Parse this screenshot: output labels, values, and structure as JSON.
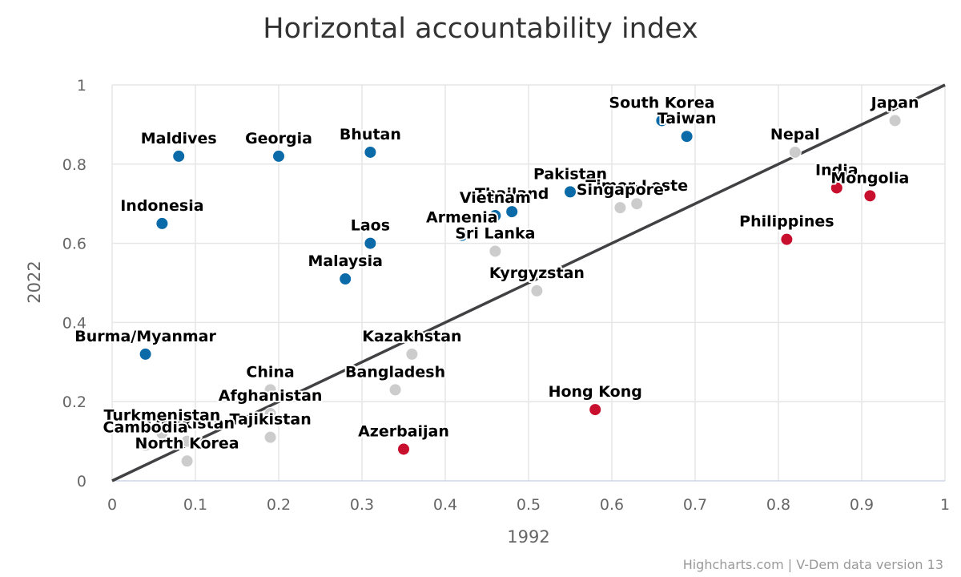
{
  "chart_data": {
    "type": "scatter",
    "title": "Horizontal accountability index",
    "xlabel": "1992",
    "ylabel": "2022",
    "xlim": [
      0,
      1
    ],
    "ylim": [
      0,
      1
    ],
    "x_ticks": [
      "0",
      "0.1",
      "0.2",
      "0.3",
      "0.4",
      "0.5",
      "0.6",
      "0.7",
      "0.8",
      "0.9",
      "1"
    ],
    "y_ticks": [
      "0",
      "0.2",
      "0.4",
      "0.6",
      "0.8",
      "1"
    ],
    "grid": true,
    "legend": "none",
    "reference_line": {
      "x": [
        0,
        1
      ],
      "y": [
        0,
        1
      ],
      "color": "#414144"
    },
    "colors": {
      "improved": "#0b6aa8",
      "declined": "#c8102e",
      "similar": "#cccccc"
    },
    "points": [
      {
        "name": "Maldives",
        "x": 0.08,
        "y": 0.82,
        "group": "improved"
      },
      {
        "name": "Georgia",
        "x": 0.2,
        "y": 0.82,
        "group": "improved"
      },
      {
        "name": "Bhutan",
        "x": 0.31,
        "y": 0.83,
        "group": "improved"
      },
      {
        "name": "Indonesia",
        "x": 0.06,
        "y": 0.65,
        "group": "improved"
      },
      {
        "name": "Laos",
        "x": 0.31,
        "y": 0.6,
        "group": "improved"
      },
      {
        "name": "Malaysia",
        "x": 0.28,
        "y": 0.51,
        "group": "improved"
      },
      {
        "name": "Burma/Myanmar",
        "x": 0.04,
        "y": 0.32,
        "group": "improved"
      },
      {
        "name": "South Korea",
        "x": 0.66,
        "y": 0.91,
        "group": "improved"
      },
      {
        "name": "Taiwan",
        "x": 0.69,
        "y": 0.87,
        "group": "improved"
      },
      {
        "name": "Pakistan",
        "x": 0.55,
        "y": 0.73,
        "group": "improved"
      },
      {
        "name": "Thailand",
        "x": 0.48,
        "y": 0.68,
        "group": "improved"
      },
      {
        "name": "Vietnam",
        "x": 0.46,
        "y": 0.67,
        "group": "improved"
      },
      {
        "name": "Armenia",
        "x": 0.42,
        "y": 0.62,
        "group": "improved"
      },
      {
        "name": "Japan",
        "x": 0.94,
        "y": 0.91,
        "group": "similar"
      },
      {
        "name": "Nepal",
        "x": 0.82,
        "y": 0.83,
        "group": "similar"
      },
      {
        "name": "Timor-Leste",
        "x": 0.63,
        "y": 0.7,
        "group": "similar"
      },
      {
        "name": "Singapore",
        "x": 0.61,
        "y": 0.69,
        "group": "similar"
      },
      {
        "name": "Sri Lanka",
        "x": 0.46,
        "y": 0.58,
        "group": "similar"
      },
      {
        "name": "Kyrgyzstan",
        "x": 0.51,
        "y": 0.48,
        "group": "similar"
      },
      {
        "name": "Kazakhstan",
        "x": 0.36,
        "y": 0.32,
        "group": "similar"
      },
      {
        "name": "Bangladesh",
        "x": 0.34,
        "y": 0.23,
        "group": "similar"
      },
      {
        "name": "China",
        "x": 0.19,
        "y": 0.23,
        "group": "similar"
      },
      {
        "name": "Afghanistan",
        "x": 0.19,
        "y": 0.17,
        "group": "similar"
      },
      {
        "name": "Tajikistan",
        "x": 0.19,
        "y": 0.11,
        "group": "similar"
      },
      {
        "name": "Uzbekistan",
        "x": 0.09,
        "y": 0.1,
        "group": "similar"
      },
      {
        "name": "Turkmenistan",
        "x": 0.06,
        "y": 0.12,
        "group": "similar"
      },
      {
        "name": "Cambodia",
        "x": 0.04,
        "y": 0.09,
        "group": "similar"
      },
      {
        "name": "North Korea",
        "x": 0.09,
        "y": 0.05,
        "group": "similar"
      },
      {
        "name": "India",
        "x": 0.87,
        "y": 0.74,
        "group": "declined"
      },
      {
        "name": "Mongolia",
        "x": 0.91,
        "y": 0.72,
        "group": "declined"
      },
      {
        "name": "Philippines",
        "x": 0.81,
        "y": 0.61,
        "group": "declined"
      },
      {
        "name": "Hong Kong",
        "x": 0.58,
        "y": 0.18,
        "group": "declined"
      },
      {
        "name": "Azerbaijan",
        "x": 0.35,
        "y": 0.08,
        "group": "declined"
      }
    ],
    "credits": "Highcharts.com | V-Dem data version 13"
  }
}
